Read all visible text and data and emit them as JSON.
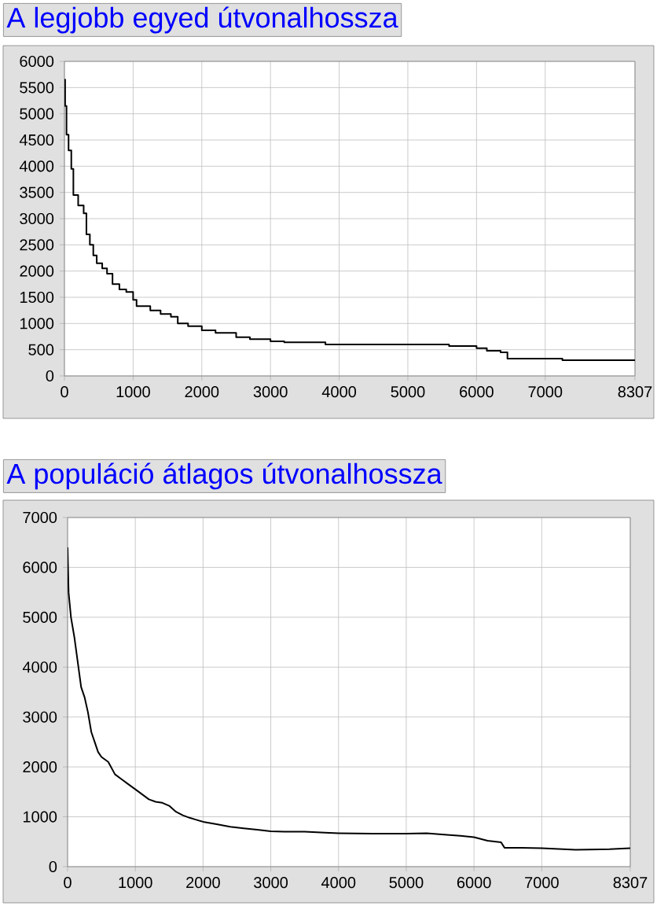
{
  "chart_data": [
    {
      "type": "step",
      "title": "A legjobb egyed útvonalhossza",
      "xlim": [
        0,
        8307
      ],
      "xticks": [
        0,
        1000,
        2000,
        3000,
        4000,
        5000,
        6000,
        7000,
        8307
      ],
      "ylim": [
        0,
        6000
      ],
      "yticks": [
        0,
        500,
        1000,
        1500,
        2000,
        2500,
        3000,
        3500,
        4000,
        4500,
        5000,
        5500,
        6000
      ],
      "grid": true,
      "x": [
        0,
        10,
        30,
        60,
        100,
        130,
        200,
        280,
        320,
        370,
        420,
        470,
        550,
        620,
        700,
        800,
        900,
        1000,
        1050,
        1250,
        1400,
        1550,
        1650,
        1800,
        2000,
        2200,
        2500,
        2700,
        3000,
        3200,
        3800,
        5600,
        6000,
        6150,
        6350,
        6450,
        7250,
        8307
      ],
      "series": [
        {
          "color": "#000000",
          "values": [
            5650,
            5150,
            4600,
            4300,
            3950,
            3450,
            3250,
            3100,
            2700,
            2500,
            2300,
            2150,
            2050,
            1950,
            1750,
            1650,
            1600,
            1450,
            1330,
            1250,
            1180,
            1130,
            1000,
            950,
            870,
            820,
            740,
            700,
            660,
            640,
            600,
            570,
            530,
            480,
            450,
            330,
            300,
            300
          ]
        }
      ]
    },
    {
      "type": "line",
      "title": "A populáció átlagos útvonalhossza",
      "xlim": [
        0,
        8307
      ],
      "xticks": [
        0,
        1000,
        2000,
        3000,
        4000,
        5000,
        6000,
        7000,
        8307
      ],
      "ylim": [
        0,
        7000
      ],
      "yticks": [
        0,
        1000,
        2000,
        3000,
        4000,
        5000,
        6000,
        7000
      ],
      "grid": true,
      "x": [
        0,
        15,
        50,
        100,
        150,
        200,
        250,
        300,
        350,
        400,
        450,
        500,
        600,
        700,
        800,
        900,
        1000,
        1100,
        1200,
        1300,
        1400,
        1500,
        1600,
        1700,
        1800,
        1900,
        2000,
        2200,
        2400,
        2600,
        2800,
        3000,
        3200,
        3500,
        3800,
        4000,
        4500,
        5000,
        5300,
        5600,
        5800,
        6000,
        6200,
        6400,
        6450,
        6700,
        7000,
        7500,
        8000,
        8307
      ],
      "series": [
        {
          "color": "#000000",
          "values": [
            6400,
            5500,
            5000,
            4600,
            4100,
            3600,
            3400,
            3100,
            2700,
            2500,
            2300,
            2200,
            2100,
            1850,
            1750,
            1650,
            1550,
            1450,
            1350,
            1300,
            1280,
            1220,
            1100,
            1030,
            980,
            940,
            900,
            850,
            800,
            770,
            740,
            710,
            700,
            700,
            680,
            670,
            660,
            660,
            670,
            640,
            620,
            590,
            520,
            490,
            380,
            380,
            370,
            340,
            350,
            370
          ]
        }
      ]
    }
  ]
}
